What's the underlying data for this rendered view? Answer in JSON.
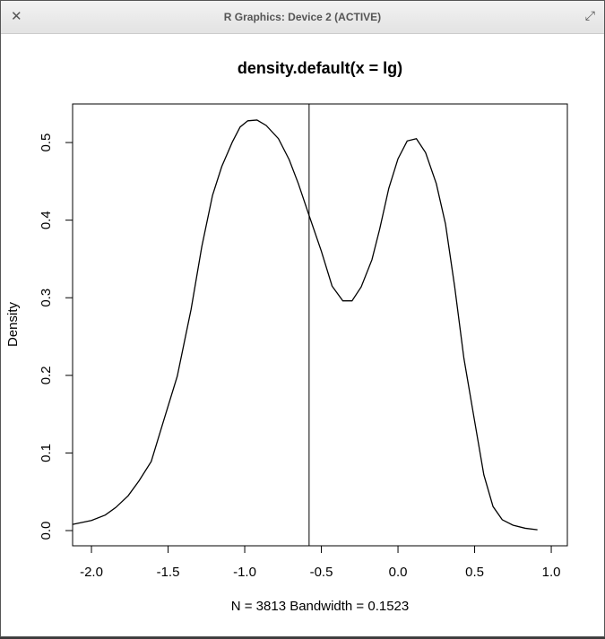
{
  "window": {
    "title": "R Graphics: Device 2 (ACTIVE)"
  },
  "chart_data": {
    "type": "line",
    "title": "density.default(x = lg)",
    "x_label": "N = 3813   Bandwidth = 0.1523",
    "y_label": "Density",
    "x": [
      -2.123,
      -2.0,
      -1.91,
      -1.84,
      -1.76,
      -1.69,
      -1.61,
      -1.53,
      -1.44,
      -1.35,
      -1.28,
      -1.21,
      -1.15,
      -1.08,
      -1.03,
      -0.98,
      -0.92,
      -0.86,
      -0.78,
      -0.71,
      -0.65,
      -0.58,
      -0.5,
      -0.43,
      -0.36,
      -0.3,
      -0.24,
      -0.17,
      -0.12,
      -0.06,
      0.0,
      0.06,
      0.12,
      0.18,
      0.25,
      0.31,
      0.37,
      0.43,
      0.5,
      0.56,
      0.62,
      0.68,
      0.75,
      0.83,
      0.91
    ],
    "series": [
      {
        "color": "#000000",
        "values": [
          0.008,
          0.013,
          0.02,
          0.03,
          0.045,
          0.064,
          0.089,
          0.141,
          0.199,
          0.285,
          0.366,
          0.432,
          0.469,
          0.501,
          0.52,
          0.528,
          0.529,
          0.522,
          0.505,
          0.478,
          0.447,
          0.406,
          0.36,
          0.315,
          0.296,
          0.296,
          0.314,
          0.349,
          0.388,
          0.441,
          0.479,
          0.502,
          0.505,
          0.487,
          0.447,
          0.395,
          0.314,
          0.222,
          0.141,
          0.072,
          0.031,
          0.014,
          0.007,
          0.003,
          0.001
        ]
      }
    ],
    "vline": -0.58,
    "xlim": [
      -2.123,
      1.105
    ],
    "ylim": [
      -0.0196,
      0.5497
    ],
    "xticks": [
      {
        "value": -2,
        "label": "-2.0"
      },
      -1.5,
      {
        "value": -1,
        "label": "-1.0"
      },
      -0.5,
      {
        "value": 0,
        "label": "0.0"
      },
      0.5,
      {
        "value": 1,
        "label": "1.0"
      }
    ],
    "yticks": [
      {
        "value": 0,
        "label": "0.0"
      },
      0.1,
      0.2,
      0.3,
      0.4,
      0.5
    ]
  }
}
